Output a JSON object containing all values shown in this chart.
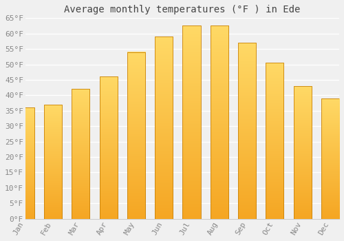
{
  "title": "Average monthly temperatures (°F ) in Ede",
  "months": [
    "Jan",
    "Feb",
    "Mar",
    "Apr",
    "May",
    "Jun",
    "Jul",
    "Aug",
    "Sep",
    "Oct",
    "Nov",
    "Dec"
  ],
  "values": [
    36,
    37,
    42,
    46,
    54,
    59,
    62.5,
    62.5,
    57,
    50.5,
    43,
    39
  ],
  "bar_color_bottom": "#F5A623",
  "bar_color_top": "#FFD966",
  "bar_color_edge": "#C8820A",
  "background_color": "#F0F0F0",
  "grid_color": "#FFFFFF",
  "tick_label_color": "#888888",
  "title_color": "#444444",
  "ylim": [
    0,
    65
  ],
  "yticks": [
    0,
    5,
    10,
    15,
    20,
    25,
    30,
    35,
    40,
    45,
    50,
    55,
    60,
    65
  ],
  "title_fontsize": 10,
  "tick_fontsize": 8
}
